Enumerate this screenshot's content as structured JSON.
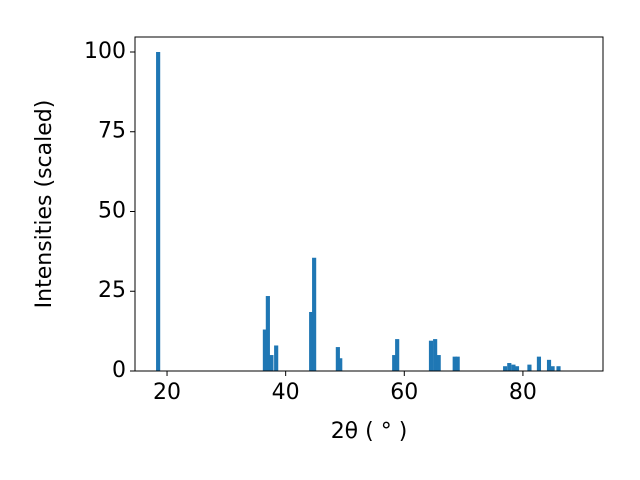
{
  "chart_data": {
    "type": "bar",
    "x_label": "2θ ( ° )",
    "y_label": "Intensities (scaled)",
    "color": "#1f77b4",
    "x": [
      18.5,
      36.5,
      37.0,
      37.6,
      38.4,
      44.3,
      44.8,
      48.8,
      49.2,
      58.3,
      58.8,
      64.5,
      65.2,
      65.8,
      68.5,
      69.0,
      77.0,
      77.7,
      78.4,
      79.0,
      81.1,
      82.7,
      84.4,
      85.0,
      86.0
    ],
    "values": [
      100,
      13,
      23.5,
      5,
      8,
      18.5,
      35.5,
      7.5,
      4,
      5,
      10,
      9.5,
      10,
      5,
      4.5,
      4.5,
      1.5,
      2.5,
      2,
      1.5,
      2,
      4.5,
      3.5,
      1.5,
      1.5
    ],
    "xlim": [
      14.6,
      93.5
    ],
    "ylim": [
      0,
      104.7
    ],
    "xticks": [
      20,
      40,
      60,
      80
    ],
    "yticks": [
      0,
      25,
      50,
      75,
      100
    ]
  }
}
